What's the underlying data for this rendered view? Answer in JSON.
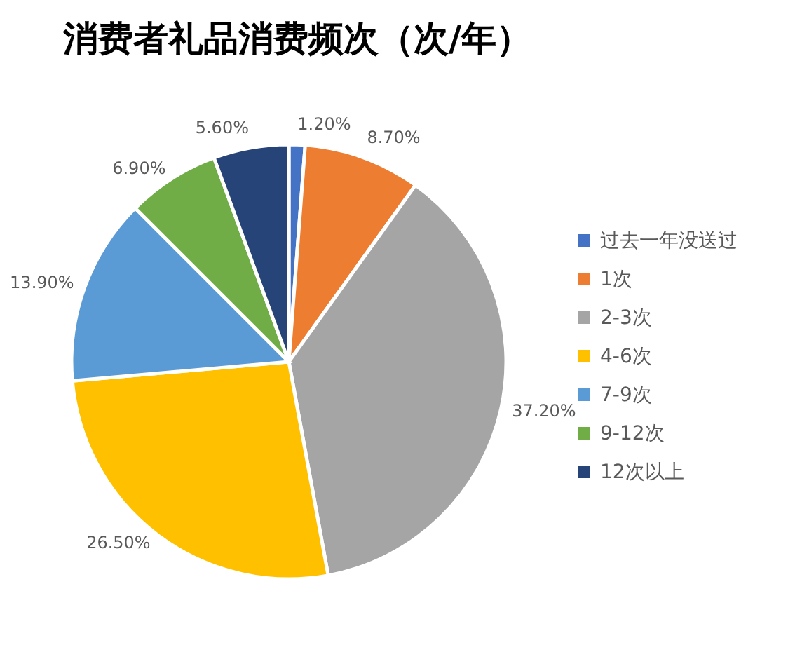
{
  "chart_data": {
    "type": "pie",
    "title": "消费者礼品消费频次（次/年）",
    "categories": [
      "过去一年没送过",
      "1次",
      "2-3次",
      "4-6次",
      "7-9次",
      "9-12次",
      "12次以上"
    ],
    "values": [
      1.2,
      8.7,
      37.2,
      26.5,
      13.9,
      6.9,
      5.6
    ],
    "value_labels": [
      "1.20%",
      "8.70%",
      "37.20%",
      "26.50%",
      "13.90%",
      "6.90%",
      "5.60%"
    ],
    "colors": [
      "#4472c4",
      "#ed7d31",
      "#a5a5a5",
      "#ffc000",
      "#5b9bd5",
      "#70ad47",
      "#264478"
    ],
    "legend": "right"
  }
}
